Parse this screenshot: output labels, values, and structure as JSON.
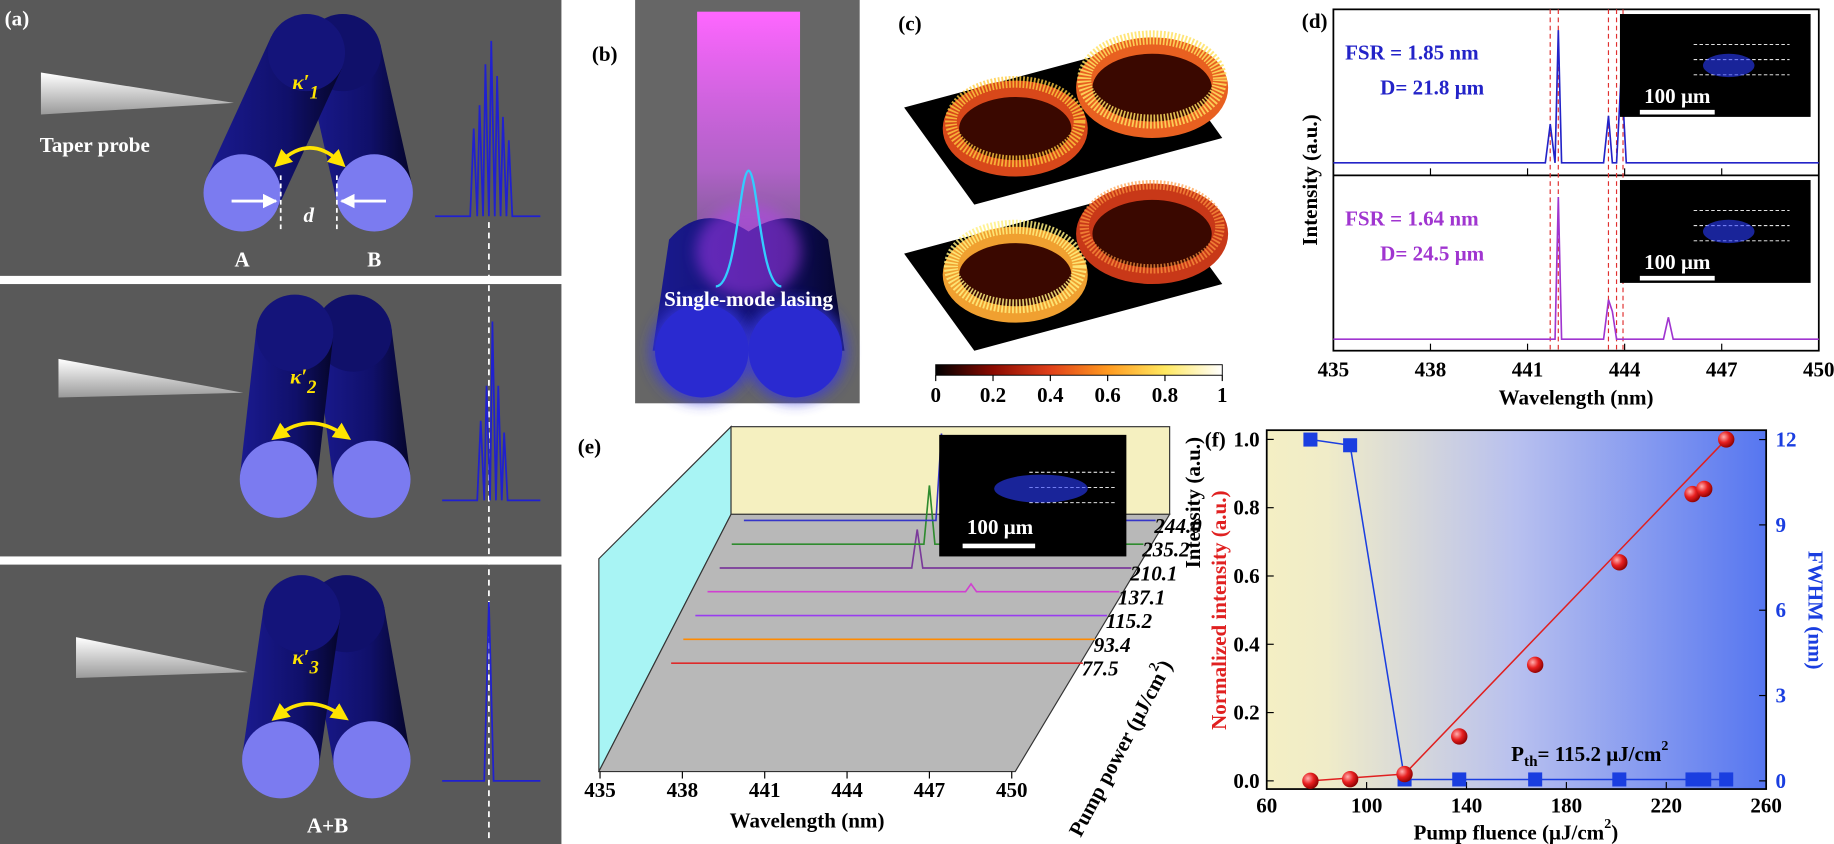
{
  "panels": {
    "a": {
      "label": "(a)",
      "probe": "Taper probe",
      "kappa": [
        {
          "base": "κ′",
          "sub": "1"
        },
        {
          "base": "κ′",
          "sub": "2"
        },
        {
          "base": "κ′",
          "sub": "3"
        }
      ],
      "gap": "d",
      "ring_a": "A",
      "ring_b": "B",
      "combined": "A+B"
    },
    "b": {
      "label": "(b)",
      "caption": "Single-mode lasing"
    },
    "c": {
      "label": "(c)",
      "colorbar": {
        "ticks": [
          0,
          0.2,
          0.4,
          0.6,
          0.8,
          1
        ],
        "colors": [
          "#000000",
          "#8b0a00",
          "#e0401a",
          "#ff9a20",
          "#ffe860",
          "#ffffff"
        ]
      }
    },
    "d": {
      "label": "(d)"
    },
    "e": {
      "label": "(e)"
    },
    "f": {
      "label": "(f)"
    }
  },
  "chart_data": [
    {
      "type": "line",
      "xlabel": "Wavelength (nm)",
      "ylabel": "Intensity (a.u.)",
      "xlim": [
        435,
        450
      ],
      "xticks": [
        435,
        438,
        441,
        444,
        447,
        450
      ],
      "ylim": [
        0,
        1.1
      ],
      "x": [
        435,
        441.55,
        441.7,
        441.85,
        441.95,
        442.05,
        442.2,
        443.35,
        443.5,
        443.62,
        443.75,
        443.9,
        444.05,
        445.2,
        445.35,
        445.5,
        450
      ],
      "series": [
        {
          "color": "#2323c8",
          "values": [
            0.04,
            0.04,
            0.32,
            0.04,
            1.0,
            0.04,
            0.04,
            0.04,
            0.38,
            0.04,
            0.04,
            0.7,
            0.04,
            0.04,
            0.04,
            0.04,
            0.04
          ]
        },
        {
          "color": "#a035d0",
          "values": [
            0.03,
            0.03,
            0.03,
            0.03,
            1.0,
            0.03,
            0.03,
            0.03,
            0.3,
            0.22,
            0.03,
            0.03,
            0.03,
            0.03,
            0.18,
            0.03,
            0.03
          ]
        }
      ],
      "markers": [
        441.7,
        441.95,
        443.5,
        443.75,
        443.95
      ],
      "marker_color": "#e03030",
      "annotations": [
        [
          "FSR = 1.85 nm",
          "D= 21.8 μm"
        ],
        [
          "FSR = 1.64 nm",
          "D= 24.5 μm"
        ]
      ],
      "scale_bar": "100 μm"
    },
    {
      "type": "waterfall",
      "xlabel": "Wavelength (nm)",
      "ylabel": "Intensity (a.u.)",
      "zlabel": {
        "text": "Pump power (μJ/cm",
        "sup": "2",
        "after": ")"
      },
      "xlim": [
        435,
        450
      ],
      "xticks": [
        435,
        438,
        441,
        444,
        447,
        450
      ],
      "ylim": [
        0,
        1
      ],
      "x": [
        435,
        442.0,
        442.2,
        442.4,
        444.4,
        444.6,
        444.8,
        450
      ],
      "series": [
        {
          "name": "77.5",
          "color": "#dd2a2a",
          "values": [
            0.01,
            0.01,
            0.01,
            0.01,
            0.01,
            0.01,
            0.01,
            0.01
          ]
        },
        {
          "name": "93.4",
          "color": "#ff8a00",
          "values": [
            0.01,
            0.01,
            0.01,
            0.01,
            0.01,
            0.01,
            0.01,
            0.01
          ]
        },
        {
          "name": "115.2",
          "color": "#9a3cf0",
          "values": [
            0.01,
            0.01,
            0.01,
            0.01,
            0.01,
            0.01,
            0.01,
            0.01
          ]
        },
        {
          "name": "137.1",
          "color": "#d040d0",
          "values": [
            0.01,
            0.01,
            0.01,
            0.01,
            0.01,
            0.1,
            0.01,
            0.01
          ]
        },
        {
          "name": "210.1",
          "color": "#7a3a9a",
          "values": [
            0.01,
            0.01,
            0.45,
            0.01,
            0.01,
            0.01,
            0.01,
            0.01
          ]
        },
        {
          "name": "235.2",
          "color": "#2e8b2e",
          "values": [
            0.01,
            0.01,
            0.68,
            0.01,
            0.01,
            0.01,
            0.01,
            0.01
          ]
        },
        {
          "name": "244.0",
          "color": "#3535c8",
          "values": [
            0.01,
            0.01,
            1.0,
            0.01,
            0.01,
            0.01,
            0.01,
            0.01
          ]
        }
      ],
      "scale_bar": "100 μm"
    },
    {
      "type": "scatter",
      "xlabel": {
        "text": "Pump fluence (μJ/cm",
        "sup": "2",
        "after": ")"
      },
      "ylabel": "Normalized intensity (a.u.)",
      "y2label": "FWHM (nm)",
      "xlim": [
        60,
        260
      ],
      "xticks": [
        60,
        100,
        140,
        180,
        220,
        260
      ],
      "ylim": [
        -0.024,
        1.027
      ],
      "yticks": [
        {
          "value": 0,
          "label": "0.0"
        },
        0.2,
        0.4,
        0.6,
        0.8,
        {
          "value": 1,
          "label": "1.0"
        }
      ],
      "y2lim": [
        -0.288,
        12.33
      ],
      "y2ticks": [
        0,
        3,
        6,
        9,
        12
      ],
      "x": [
        77.5,
        93.4,
        115.2,
        137.1,
        167.5,
        201.2,
        230.5,
        235.2,
        244.0
      ],
      "series": [
        {
          "color": "#e02020",
          "values": [
            0.0,
            0.005,
            0.02,
            0.13,
            0.34,
            0.64,
            0.84,
            0.855,
            1.0
          ]
        },
        {
          "color": "#1a3ee0",
          "axis": "y2",
          "values": [
            12,
            11.8,
            0.05,
            0.05,
            0.05,
            0.05,
            0.05,
            0.05,
            0.05
          ]
        }
      ],
      "fit": {
        "x": [
          77.5,
          115.2,
          244.0
        ],
        "values": [
          0.0,
          0.02,
          1.0
        ],
        "color": "#e02020"
      },
      "annotation": {
        "base": "P",
        "sub": "th",
        "rest": "= 115.2 μJ/cm",
        "sup": "2"
      }
    }
  ]
}
